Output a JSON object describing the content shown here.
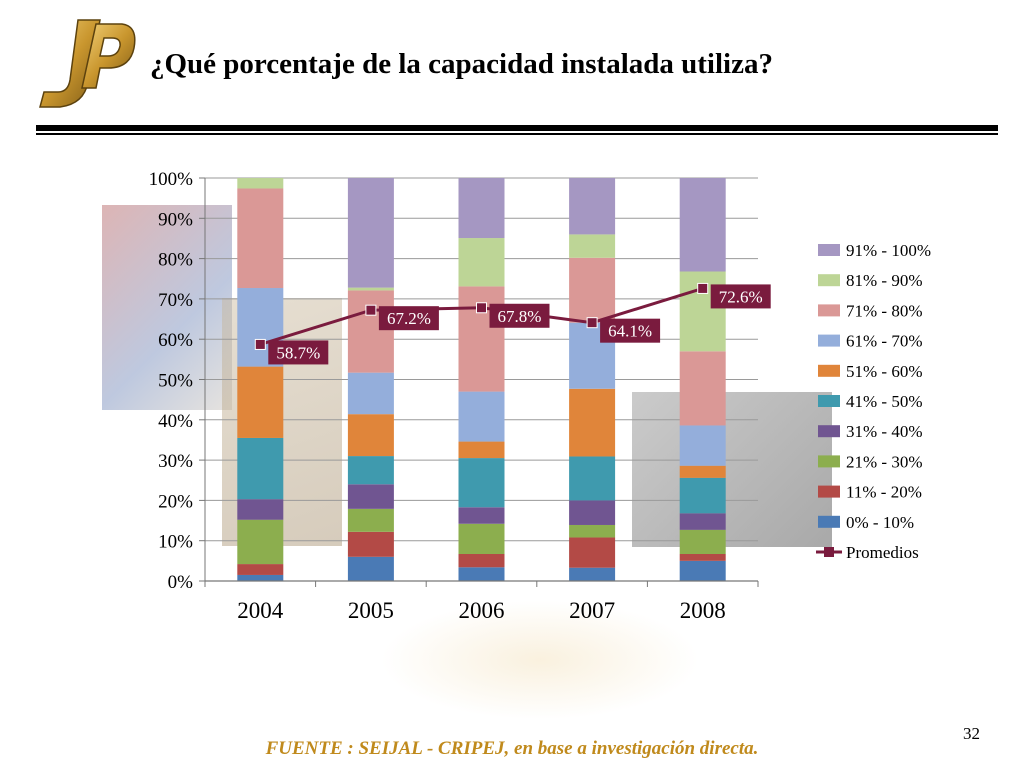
{
  "slide": {
    "title": "¿Qué porcentaje de la capacidad instalada utiliza?",
    "source": "FUENTE :  SEIJAL - CRIPEJ,  en base a investigación directa.",
    "page_number": "32",
    "logo_icon": "jp-logo-icon"
  },
  "chart_data": {
    "type": "bar",
    "stacked": true,
    "categories": [
      "2004",
      "2005",
      "2006",
      "2007",
      "2008"
    ],
    "ylim": [
      0,
      100
    ],
    "yticks": [
      "0%",
      "10%",
      "20%",
      "30%",
      "40%",
      "50%",
      "60%",
      "70%",
      "80%",
      "90%",
      "100%"
    ],
    "grid": true,
    "legend_position": "right",
    "series": [
      {
        "name": "0% - 10%",
        "color": "#4a7ab5",
        "values": [
          1.5,
          6.0,
          3.4,
          3.3,
          5.0
        ]
      },
      {
        "name": "11% - 20%",
        "color": "#b34a46",
        "values": [
          2.7,
          6.2,
          3.3,
          7.5,
          1.7
        ]
      },
      {
        "name": "21% - 30%",
        "color": "#8cae4e",
        "values": [
          11.0,
          5.7,
          7.5,
          3.1,
          6.0
        ]
      },
      {
        "name": "31% - 40%",
        "color": "#705591",
        "values": [
          5.1,
          6.1,
          4.1,
          6.1,
          4.1
        ]
      },
      {
        "name": "41% - 50%",
        "color": "#3f9aae",
        "values": [
          15.2,
          7.0,
          12.2,
          10.9,
          8.8
        ]
      },
      {
        "name": "51% - 60%",
        "color": "#e0853a",
        "values": [
          17.7,
          10.4,
          4.1,
          16.8,
          3.0
        ]
      },
      {
        "name": "61% - 70%",
        "color": "#94aedb",
        "values": [
          19.5,
          10.3,
          12.4,
          16.4,
          10.0
        ]
      },
      {
        "name": "71% - 80%",
        "color": "#da9896",
        "values": [
          24.7,
          20.4,
          26.1,
          16.1,
          18.4
        ]
      },
      {
        "name": "81% - 90%",
        "color": "#bdd596",
        "values": [
          2.6,
          0.7,
          12.0,
          5.8,
          19.8
        ]
      },
      {
        "name": "91% - 100%",
        "color": "#a597c2",
        "values": [
          0.0,
          27.2,
          14.9,
          14.0,
          23.2
        ]
      }
    ],
    "line": {
      "name": "Promedios",
      "color": "#7a1b3e",
      "values": [
        58.7,
        67.2,
        67.8,
        64.1,
        72.6
      ],
      "labels": [
        "58.7%",
        "67.2%",
        "67.8%",
        "64.1%",
        "72.6%"
      ]
    }
  }
}
